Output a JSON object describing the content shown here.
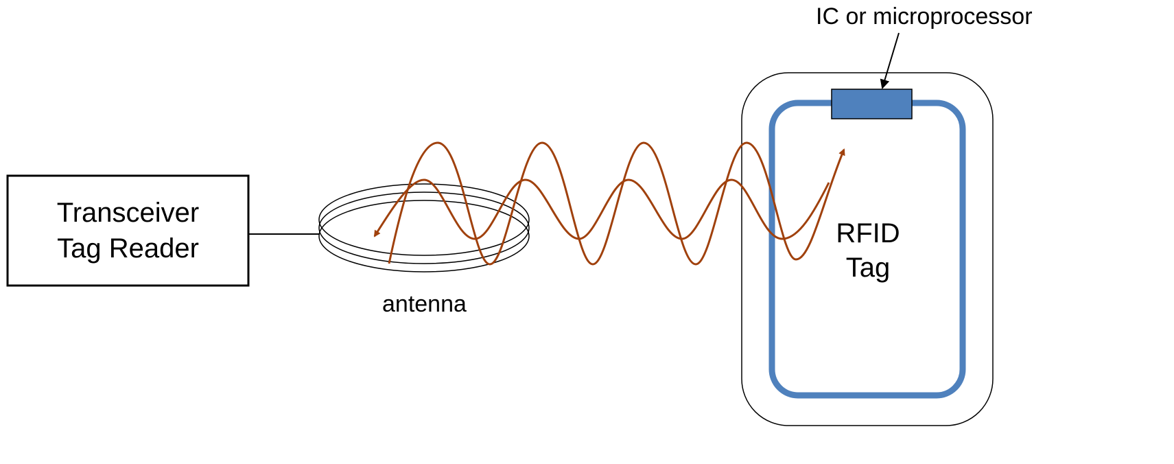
{
  "reader": {
    "line1": "Transceiver",
    "line2": "Tag Reader"
  },
  "antenna": {
    "label": "antenna"
  },
  "tag": {
    "line1": "RFID",
    "line2": "Tag"
  },
  "chip": {
    "label": "IC or microprocessor"
  },
  "colors": {
    "wave": "#a0410d",
    "tag_coil": "#4f81bd",
    "chip_fill": "#4f81bd",
    "outline": "#000000"
  }
}
